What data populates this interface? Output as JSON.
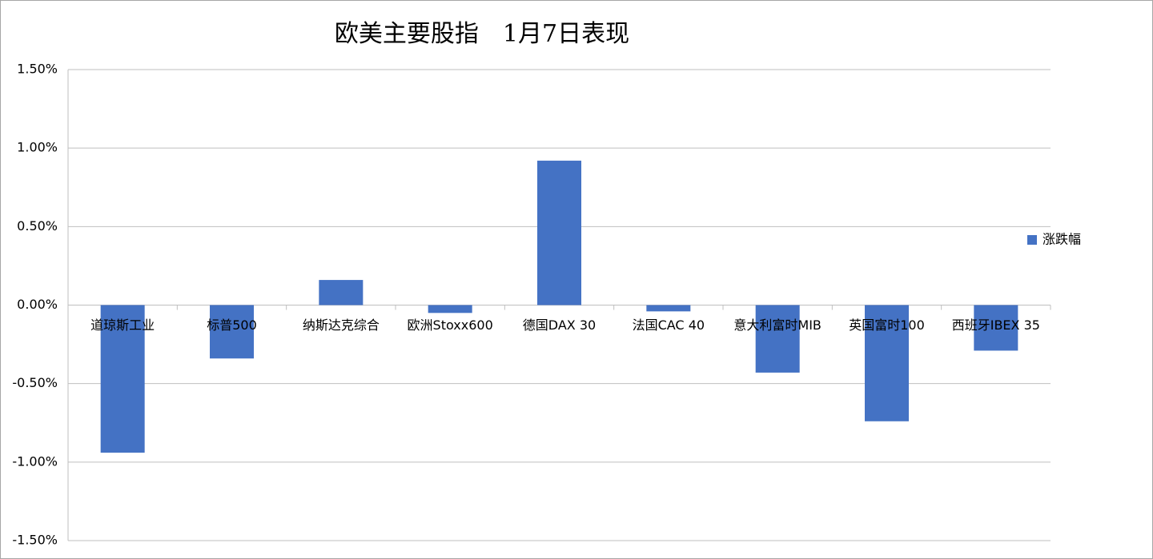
{
  "chart_data": {
    "type": "bar",
    "title": "欧美主要股指　1月7日表现",
    "categories": [
      "道琼斯工业",
      "标普500",
      "纳斯达克综合",
      "欧洲Stoxx600",
      "德国DAX 30",
      "法国CAC 40",
      "意大利富时MIB",
      "英国富时100",
      "西班牙IBEX 35"
    ],
    "series": [
      {
        "name": "涨跌幅",
        "color": "#4472c4",
        "values": [
          -0.94,
          -0.34,
          0.16,
          -0.05,
          0.92,
          -0.04,
          -0.43,
          -0.74,
          -0.29
        ]
      }
    ],
    "ylim": [
      -1.5,
      1.5
    ],
    "yticks": [
      {
        "value": -1.5,
        "label": "-1.50%"
      },
      {
        "value": -1.0,
        "label": "-1.00%"
      },
      {
        "value": -0.5,
        "label": "-0.50%"
      },
      {
        "value": 0,
        "label": "0.00%"
      },
      {
        "value": 0.5,
        "label": "0.50%"
      },
      {
        "value": 1.0,
        "label": "1.00%"
      },
      {
        "value": 1.5,
        "label": "1.50%"
      }
    ],
    "grid": true,
    "legend": "right"
  }
}
